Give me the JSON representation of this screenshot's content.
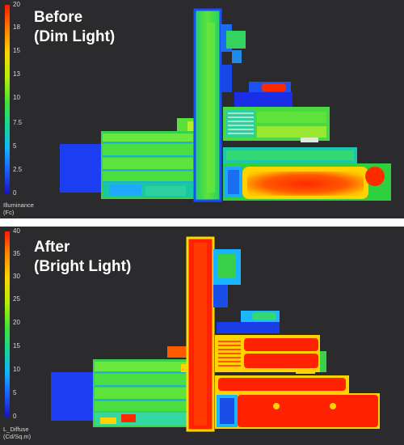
{
  "panels": {
    "top": {
      "caption_line1": "Before",
      "caption_line2": "(Dim Light)",
      "legend_ticks": [
        "20",
        "18",
        "15",
        "13",
        "10",
        "7.5",
        "5",
        "2.5",
        "0"
      ],
      "legend_unit_line1": "Illuminance",
      "legend_unit_line2": "(Fc)"
    },
    "bottom": {
      "caption_line1": "After",
      "caption_line2": "(Bright Light)",
      "legend_ticks": [
        "40",
        "35",
        "30",
        "25",
        "20",
        "15",
        "10",
        "5",
        "0"
      ],
      "legend_unit_line1": "L_Diffuse",
      "legend_unit_line2": "(Cd/Sq.m)"
    }
  },
  "colors": {
    "background": "#2b2b2d",
    "separator": "#ffffff",
    "scale_low": "#0000c8",
    "scale_mid": "#33dd33",
    "scale_high": "#ff2200"
  }
}
